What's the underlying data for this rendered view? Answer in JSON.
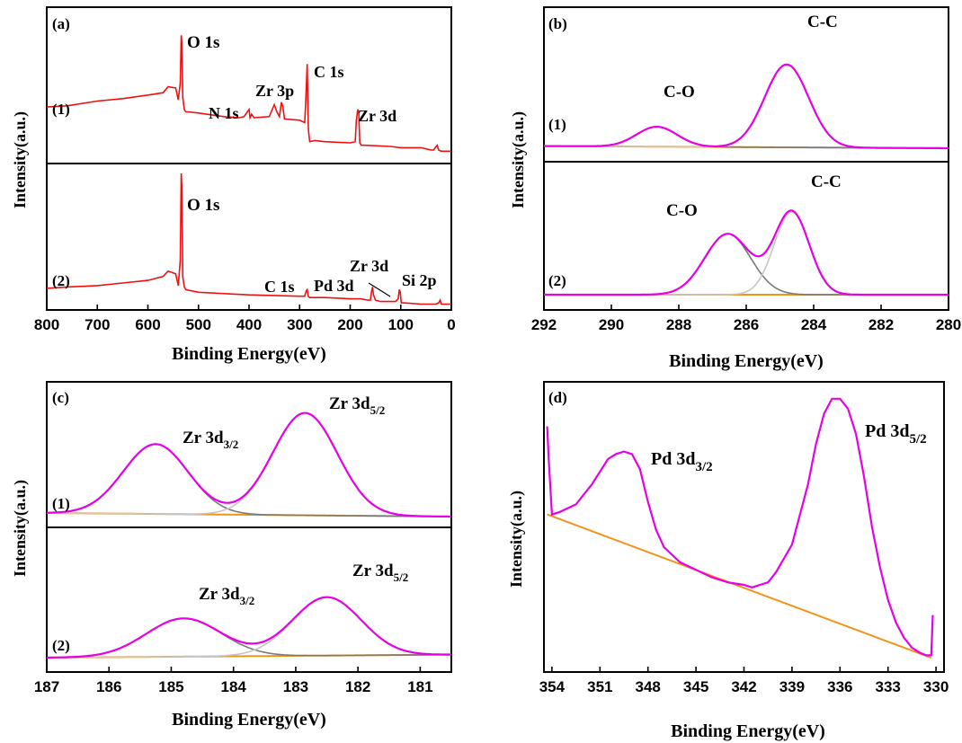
{
  "figure": {
    "colors": {
      "survey": "#ee1111",
      "envelope": "#e600e6",
      "baseline": "#f0941a",
      "comp_dark": "#7a7a7a",
      "comp_light": "#c6c6c6",
      "frame": "#000000"
    }
  },
  "chart_data": [
    {
      "id": "a",
      "type": "line",
      "panel_label": "(a)",
      "xlabel": "Binding Energy(eV)",
      "ylabel": "Intensity(a.u.)",
      "xlim": [
        800,
        0
      ],
      "xticks": [
        "800",
        "700",
        "600",
        "500",
        "400",
        "300",
        "200",
        "100",
        "0"
      ],
      "subpanels": [
        {
          "label": "(1)",
          "series": [
            {
              "x": [
                800,
                760,
                700,
                650,
                600,
                570,
                560,
                545,
                540,
                536,
                534,
                533,
                531,
                528,
                525,
                520,
                500,
                450,
                420,
                410,
                400,
                398,
                395,
                390,
                360,
                350,
                345,
                340,
                336,
                333,
                330,
                300,
                295,
                290,
                288,
                285,
                283,
                282,
                280,
                270,
                250,
                200,
                190,
                188,
                185,
                183,
                181,
                178,
                170,
                120,
                100,
                60,
                50,
                40,
                35,
                32,
                28,
                25,
                20,
                0
              ],
              "y": [
                0.42,
                0.43,
                0.47,
                0.49,
                0.52,
                0.54,
                0.59,
                0.58,
                0.48,
                0.62,
                1.02,
                0.96,
                0.5,
                0.4,
                0.38,
                0.38,
                0.37,
                0.34,
                0.33,
                0.34,
                0.4,
                0.33,
                0.36,
                0.33,
                0.34,
                0.44,
                0.38,
                0.34,
                0.46,
                0.42,
                0.32,
                0.31,
                0.3,
                0.29,
                0.45,
                0.78,
                0.28,
                0.2,
                0.13,
                0.14,
                0.13,
                0.12,
                0.13,
                0.3,
                0.4,
                0.36,
                0.12,
                0.1,
                0.1,
                0.09,
                0.08,
                0.08,
                0.07,
                0.06,
                0.06,
                0.08,
                0.1,
                0.06,
                0.05,
                0.05
              ]
            }
          ],
          "annotations": [
            "O 1s",
            "N 1s",
            "Zr 3p",
            "C 1s",
            "Zr 3d"
          ]
        },
        {
          "label": "(2)",
          "series": [
            {
              "x": [
                800,
                760,
                700,
                650,
                600,
                570,
                560,
                545,
                540,
                536,
                534,
                533,
                531,
                528,
                525,
                500,
                400,
                300,
                290,
                287,
                285,
                283,
                280,
                250,
                200,
                180,
                165,
                160,
                158,
                156,
                154,
                150,
                140,
                120,
                110,
                105,
                103,
                101,
                99,
                95,
                60,
                40,
                30,
                25,
                22,
                20,
                0
              ],
              "y": [
                0.13,
                0.14,
                0.15,
                0.17,
                0.19,
                0.22,
                0.26,
                0.24,
                0.15,
                0.34,
                1.0,
                0.9,
                0.22,
                0.14,
                0.12,
                0.1,
                0.08,
                0.07,
                0.07,
                0.11,
                0.12,
                0.07,
                0.06,
                0.06,
                0.05,
                0.05,
                0.04,
                0.04,
                0.1,
                0.14,
                0.08,
                0.04,
                0.03,
                0.03,
                0.03,
                0.05,
                0.12,
                0.1,
                0.02,
                0.02,
                0.01,
                0.01,
                0.01,
                0.02,
                0.04,
                0.01,
                0.01
              ]
            }
          ],
          "annotations": [
            "O 1s",
            "C 1s",
            "Pd 3d",
            "Zr 3d",
            "Si 2p"
          ]
        }
      ]
    },
    {
      "id": "b",
      "type": "line",
      "panel_label": "(b)",
      "xlabel": "Binding Energy(eV)",
      "ylabel": "Intensity(a.u.)",
      "xlim": [
        292,
        280
      ],
      "xticks": [
        "292",
        "290",
        "288",
        "286",
        "284",
        "282",
        "280"
      ],
      "subpanels": [
        {
          "label": "(1)",
          "baseline": [
            0.02,
            0.0
          ],
          "components": [
            {
              "center": 288.65,
              "height": 0.18,
              "sigma": 0.6
            },
            {
              "center": 284.8,
              "height": 0.75,
              "sigma": 0.65
            }
          ],
          "annotations": [
            "C-O",
            "C-C"
          ]
        },
        {
          "label": "(2)",
          "baseline": [
            0.0,
            0.0
          ],
          "components": [
            {
              "center": 286.55,
              "height": 0.55,
              "sigma": 0.68
            },
            {
              "center": 284.65,
              "height": 0.75,
              "sigma": 0.52
            }
          ],
          "annotations": [
            "C-O",
            "C-C"
          ]
        }
      ]
    },
    {
      "id": "c",
      "type": "line",
      "panel_label": "(c)",
      "xlabel": "Binding Energy(eV)",
      "ylabel": "Intensity(a.u.)",
      "xlim": [
        187,
        180.5
      ],
      "xticks": [
        "187",
        "186",
        "185",
        "184",
        "183",
        "182",
        "181"
      ],
      "subpanels": [
        {
          "label": "(1)",
          "baseline": [
            0.03,
            0.0
          ],
          "components": [
            {
              "center": 185.25,
              "height": 0.58,
              "sigma": 0.52
            },
            {
              "center": 182.85,
              "height": 0.85,
              "sigma": 0.52
            }
          ],
          "annotations": [
            [
              "Zr 3d",
              "3/2"
            ],
            [
              "Zr 3d",
              "5/2"
            ]
          ]
        },
        {
          "label": "(2)",
          "baseline": [
            0.0,
            0.03
          ],
          "components": [
            {
              "center": 184.8,
              "height": 0.38,
              "sigma": 0.6
            },
            {
              "center": 182.5,
              "height": 0.58,
              "sigma": 0.55
            }
          ],
          "annotations": [
            [
              "Zr 3d",
              "3/2"
            ],
            [
              "Zr 3d",
              "5/2"
            ]
          ]
        }
      ]
    },
    {
      "id": "d",
      "type": "line",
      "panel_label": "(d)",
      "xlabel": "Binding Energy(eV)",
      "ylabel": "Intensity(a.u.)",
      "xlim": [
        354.5,
        329.5
      ],
      "xticks": [
        "354",
        "351",
        "348",
        "345",
        "342",
        "339",
        "336",
        "333",
        "330"
      ],
      "series": [
        {
          "x": [
            354.3,
            354.2,
            354.0,
            353.5,
            352.5,
            351.5,
            350.5,
            350.0,
            349.5,
            349.0,
            348.5,
            348.0,
            347.5,
            347.0,
            346.0,
            345.0,
            344.0,
            343.0,
            342.0,
            341.5,
            341.0,
            340.5,
            340.0,
            339.0,
            338.0,
            337.5,
            337.0,
            336.5,
            336.0,
            335.5,
            335.0,
            334.5,
            334.0,
            333.5,
            333.0,
            332.5,
            332.0,
            331.5,
            331.0,
            330.6,
            330.3,
            330.2
          ],
          "y": [
            0.93,
            0.8,
            0.58,
            0.59,
            0.62,
            0.7,
            0.8,
            0.82,
            0.83,
            0.82,
            0.76,
            0.63,
            0.52,
            0.45,
            0.39,
            0.36,
            0.33,
            0.31,
            0.3,
            0.29,
            0.3,
            0.31,
            0.35,
            0.46,
            0.7,
            0.86,
            0.98,
            1.04,
            1.04,
            1.0,
            0.9,
            0.73,
            0.53,
            0.37,
            0.24,
            0.15,
            0.09,
            0.05,
            0.03,
            0.02,
            0.02,
            0.18
          ]
        }
      ],
      "baseline": {
        "x": [
          354.3,
          330.3
        ],
        "y": [
          0.58,
          0.01
        ]
      },
      "annotations": [
        [
          "Pd 3d",
          "3/2"
        ],
        [
          "Pd 3d",
          "5/2"
        ]
      ]
    }
  ]
}
